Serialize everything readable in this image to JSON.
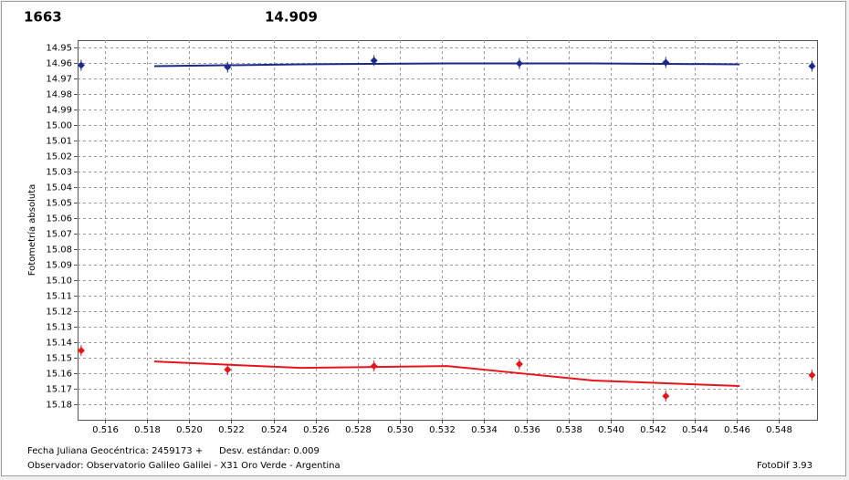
{
  "chart_data": {
    "type": "scatter",
    "title": "1663",
    "subtitle": "14.909",
    "title_color": "#e8141c",
    "subtitle_color": "#1c2a8c",
    "y_label": "Fotometría absoluta",
    "footer": {
      "date": "Fecha Juliana Geocéntrica: 2459173 +",
      "std": "Desv. estándar: 0.009",
      "observer": "Observador: Observatorio Galileo Galilei - X31 Oro Verde - Argentina",
      "version": "FotoDif 3.93"
    },
    "xlim": [
      0.5147,
      0.5498
    ],
    "xticks": [
      0.516,
      0.518,
      {
        "value": 0.52,
        "label": "0.520"
      },
      0.522,
      0.524,
      0.526,
      0.528,
      {
        "value": 0.53,
        "label": "0.530"
      },
      0.532,
      0.534,
      0.536,
      0.538,
      {
        "value": 0.54,
        "label": "0.540"
      },
      0.542,
      0.544,
      0.546,
      0.548
    ],
    "ylim": [
      15.19,
      14.945
    ],
    "yticks": [
      14.95,
      14.96,
      14.97,
      14.98,
      14.99,
      {
        "value": 15.0,
        "label": "15.00"
      },
      15.01,
      15.02,
      15.03,
      15.04,
      15.05,
      15.06,
      15.07,
      15.08,
      15.09,
      {
        "value": 15.1,
        "label": "15.10"
      },
      15.11,
      15.12,
      15.13,
      15.14,
      15.15,
      15.16,
      15.17,
      15.18
    ],
    "grid": true,
    "series": [
      {
        "color": "#1c2a8c",
        "mode": "markers",
        "x": [
          0.51487,
          0.52182,
          0.52877,
          0.53567,
          0.54262,
          0.54956
        ],
        "values": [
          14.9612,
          14.9624,
          14.9582,
          14.96,
          14.9594,
          14.9618
        ]
      },
      {
        "color": "#1c2a8c",
        "mode": "line",
        "x": [
          0.51834,
          0.52529,
          0.53224,
          0.53918,
          0.54613
        ],
        "values": [
          14.9618,
          14.9606,
          14.96,
          14.96,
          14.9606
        ]
      },
      {
        "color": "#e8141c",
        "mode": "markers",
        "x": [
          0.51487,
          0.52182,
          0.52877,
          0.53567,
          0.54262,
          0.54956
        ],
        "values": [
          15.1453,
          15.1576,
          15.1553,
          15.1541,
          15.1747,
          15.1612
        ]
      },
      {
        "color": "#e8141c",
        "mode": "line",
        "x": [
          0.51834,
          0.52529,
          0.53224,
          0.53571,
          0.53918,
          0.54613
        ],
        "values": [
          15.1524,
          15.1565,
          15.1553,
          15.16,
          15.1647,
          15.1682
        ]
      }
    ]
  }
}
